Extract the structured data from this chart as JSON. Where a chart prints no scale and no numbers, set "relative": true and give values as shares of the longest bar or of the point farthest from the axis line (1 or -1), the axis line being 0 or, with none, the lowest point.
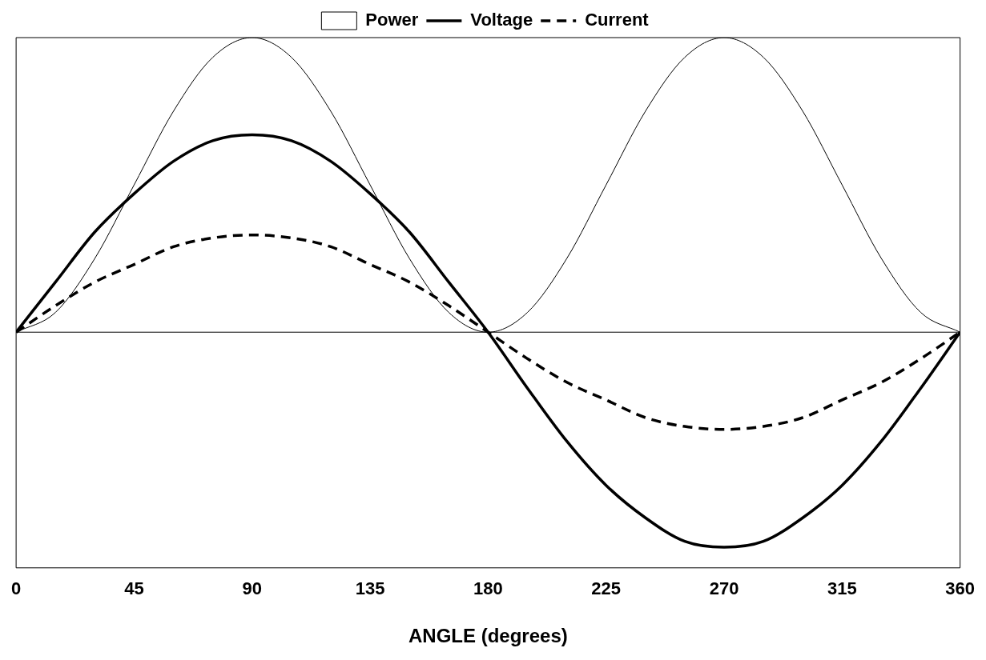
{
  "chart_data": {
    "type": "line",
    "xlabel": "ANGLE (degrees)",
    "relative": true,
    "xlim": [
      0,
      360
    ],
    "xticks": [
      0,
      45,
      90,
      135,
      180,
      225,
      270,
      315,
      360
    ],
    "tick_labels": "x",
    "grid": false,
    "legend": "top",
    "marker": "none",
    "x": [
      0,
      15,
      30,
      45,
      60,
      75,
      90,
      105,
      120,
      135,
      150,
      165,
      180,
      195,
      210,
      225,
      240,
      255,
      270,
      285,
      300,
      315,
      330,
      345,
      360
    ],
    "series": [
      {
        "name": "Power",
        "color": "#000000",
        "line_style": "solid",
        "values": [
          0,
          0.067,
          0.25,
          0.5,
          0.75,
          0.933,
          1,
          0.933,
          0.75,
          0.5,
          0.25,
          0.067,
          0,
          0.067,
          0.25,
          0.5,
          0.75,
          0.933,
          1,
          0.933,
          0.75,
          0.5,
          0.25,
          0.067,
          0
        ]
      },
      {
        "name": "Voltage",
        "color": "#000000",
        "line_style": "solid",
        "values": [
          0,
          0.17,
          0.34,
          0.47,
          0.58,
          0.65,
          0.67,
          0.65,
          0.58,
          0.47,
          0.34,
          0.17,
          0,
          -0.19,
          -0.37,
          -0.52,
          -0.63,
          -0.71,
          -0.73,
          -0.71,
          -0.63,
          -0.52,
          -0.37,
          -0.19,
          0
        ]
      },
      {
        "name": "Current",
        "color": "#000000",
        "line_style": "dashed",
        "values": [
          0,
          0.09,
          0.17,
          0.23,
          0.29,
          0.32,
          0.33,
          0.32,
          0.29,
          0.23,
          0.17,
          0.09,
          0,
          -0.09,
          -0.17,
          -0.23,
          -0.29,
          -0.32,
          -0.33,
          -0.32,
          -0.29,
          -0.23,
          -0.17,
          -0.09,
          0
        ]
      }
    ]
  }
}
